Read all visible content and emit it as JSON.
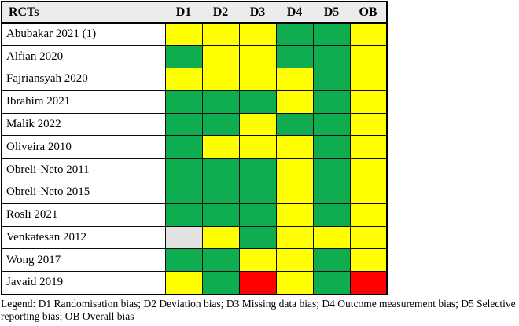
{
  "chart_data": {
    "type": "heatmap",
    "corner_header": "RCTs",
    "columns": [
      "D1",
      "D2",
      "D3",
      "D4",
      "D5",
      "OB"
    ],
    "rows": [
      "Abubakar 2021 (1)",
      "Alfian 2020",
      "Fajriansyah 2020",
      "Ibrahim 2021",
      "Malik 2022",
      "Oliveira 2010",
      "Obreli-Neto 2011",
      "Obreli-Neto 2015",
      "Rosli 2021",
      "Venkatesan 2012",
      "Wong 2017",
      "Javaid 2019"
    ],
    "values": [
      [
        "some-concerns",
        "some-concerns",
        "some-concerns",
        "low",
        "low",
        "some-concerns"
      ],
      [
        "low",
        "some-concerns",
        "some-concerns",
        "low",
        "low",
        "some-concerns"
      ],
      [
        "some-concerns",
        "some-concerns",
        "some-concerns",
        "some-concerns",
        "low",
        "some-concerns"
      ],
      [
        "low",
        "low",
        "low",
        "some-concerns",
        "low",
        "some-concerns"
      ],
      [
        "low",
        "low",
        "some-concerns",
        "low",
        "low",
        "some-concerns"
      ],
      [
        "low",
        "some-concerns",
        "some-concerns",
        "some-concerns",
        "low",
        "some-concerns"
      ],
      [
        "low",
        "low",
        "low",
        "some-concerns",
        "low",
        "some-concerns"
      ],
      [
        "low",
        "low",
        "low",
        "some-concerns",
        "low",
        "some-concerns"
      ],
      [
        "low",
        "low",
        "low",
        "some-concerns",
        "low",
        "some-concerns"
      ],
      [
        "no-information",
        "some-concerns",
        "low",
        "some-concerns",
        "some-concerns",
        "some-concerns"
      ],
      [
        "low",
        "low",
        "some-concerns",
        "some-concerns",
        "low",
        "some-concerns"
      ],
      [
        "some-concerns",
        "low",
        "high",
        "some-concerns",
        "low",
        "high"
      ]
    ],
    "cell_colors": {
      "low": "#0FAC50",
      "some-concerns": "#FFFF00",
      "high": "#FF0000",
      "no-information": "#E2E2E2"
    },
    "header_bg": "#ECECEC",
    "legend": "Legend: D1 Randomisation bias; D2 Deviation bias; D3 Missing data bias; D4 Outcome measurement bias; D5 Selective reporting bias; OB Overall bias"
  }
}
